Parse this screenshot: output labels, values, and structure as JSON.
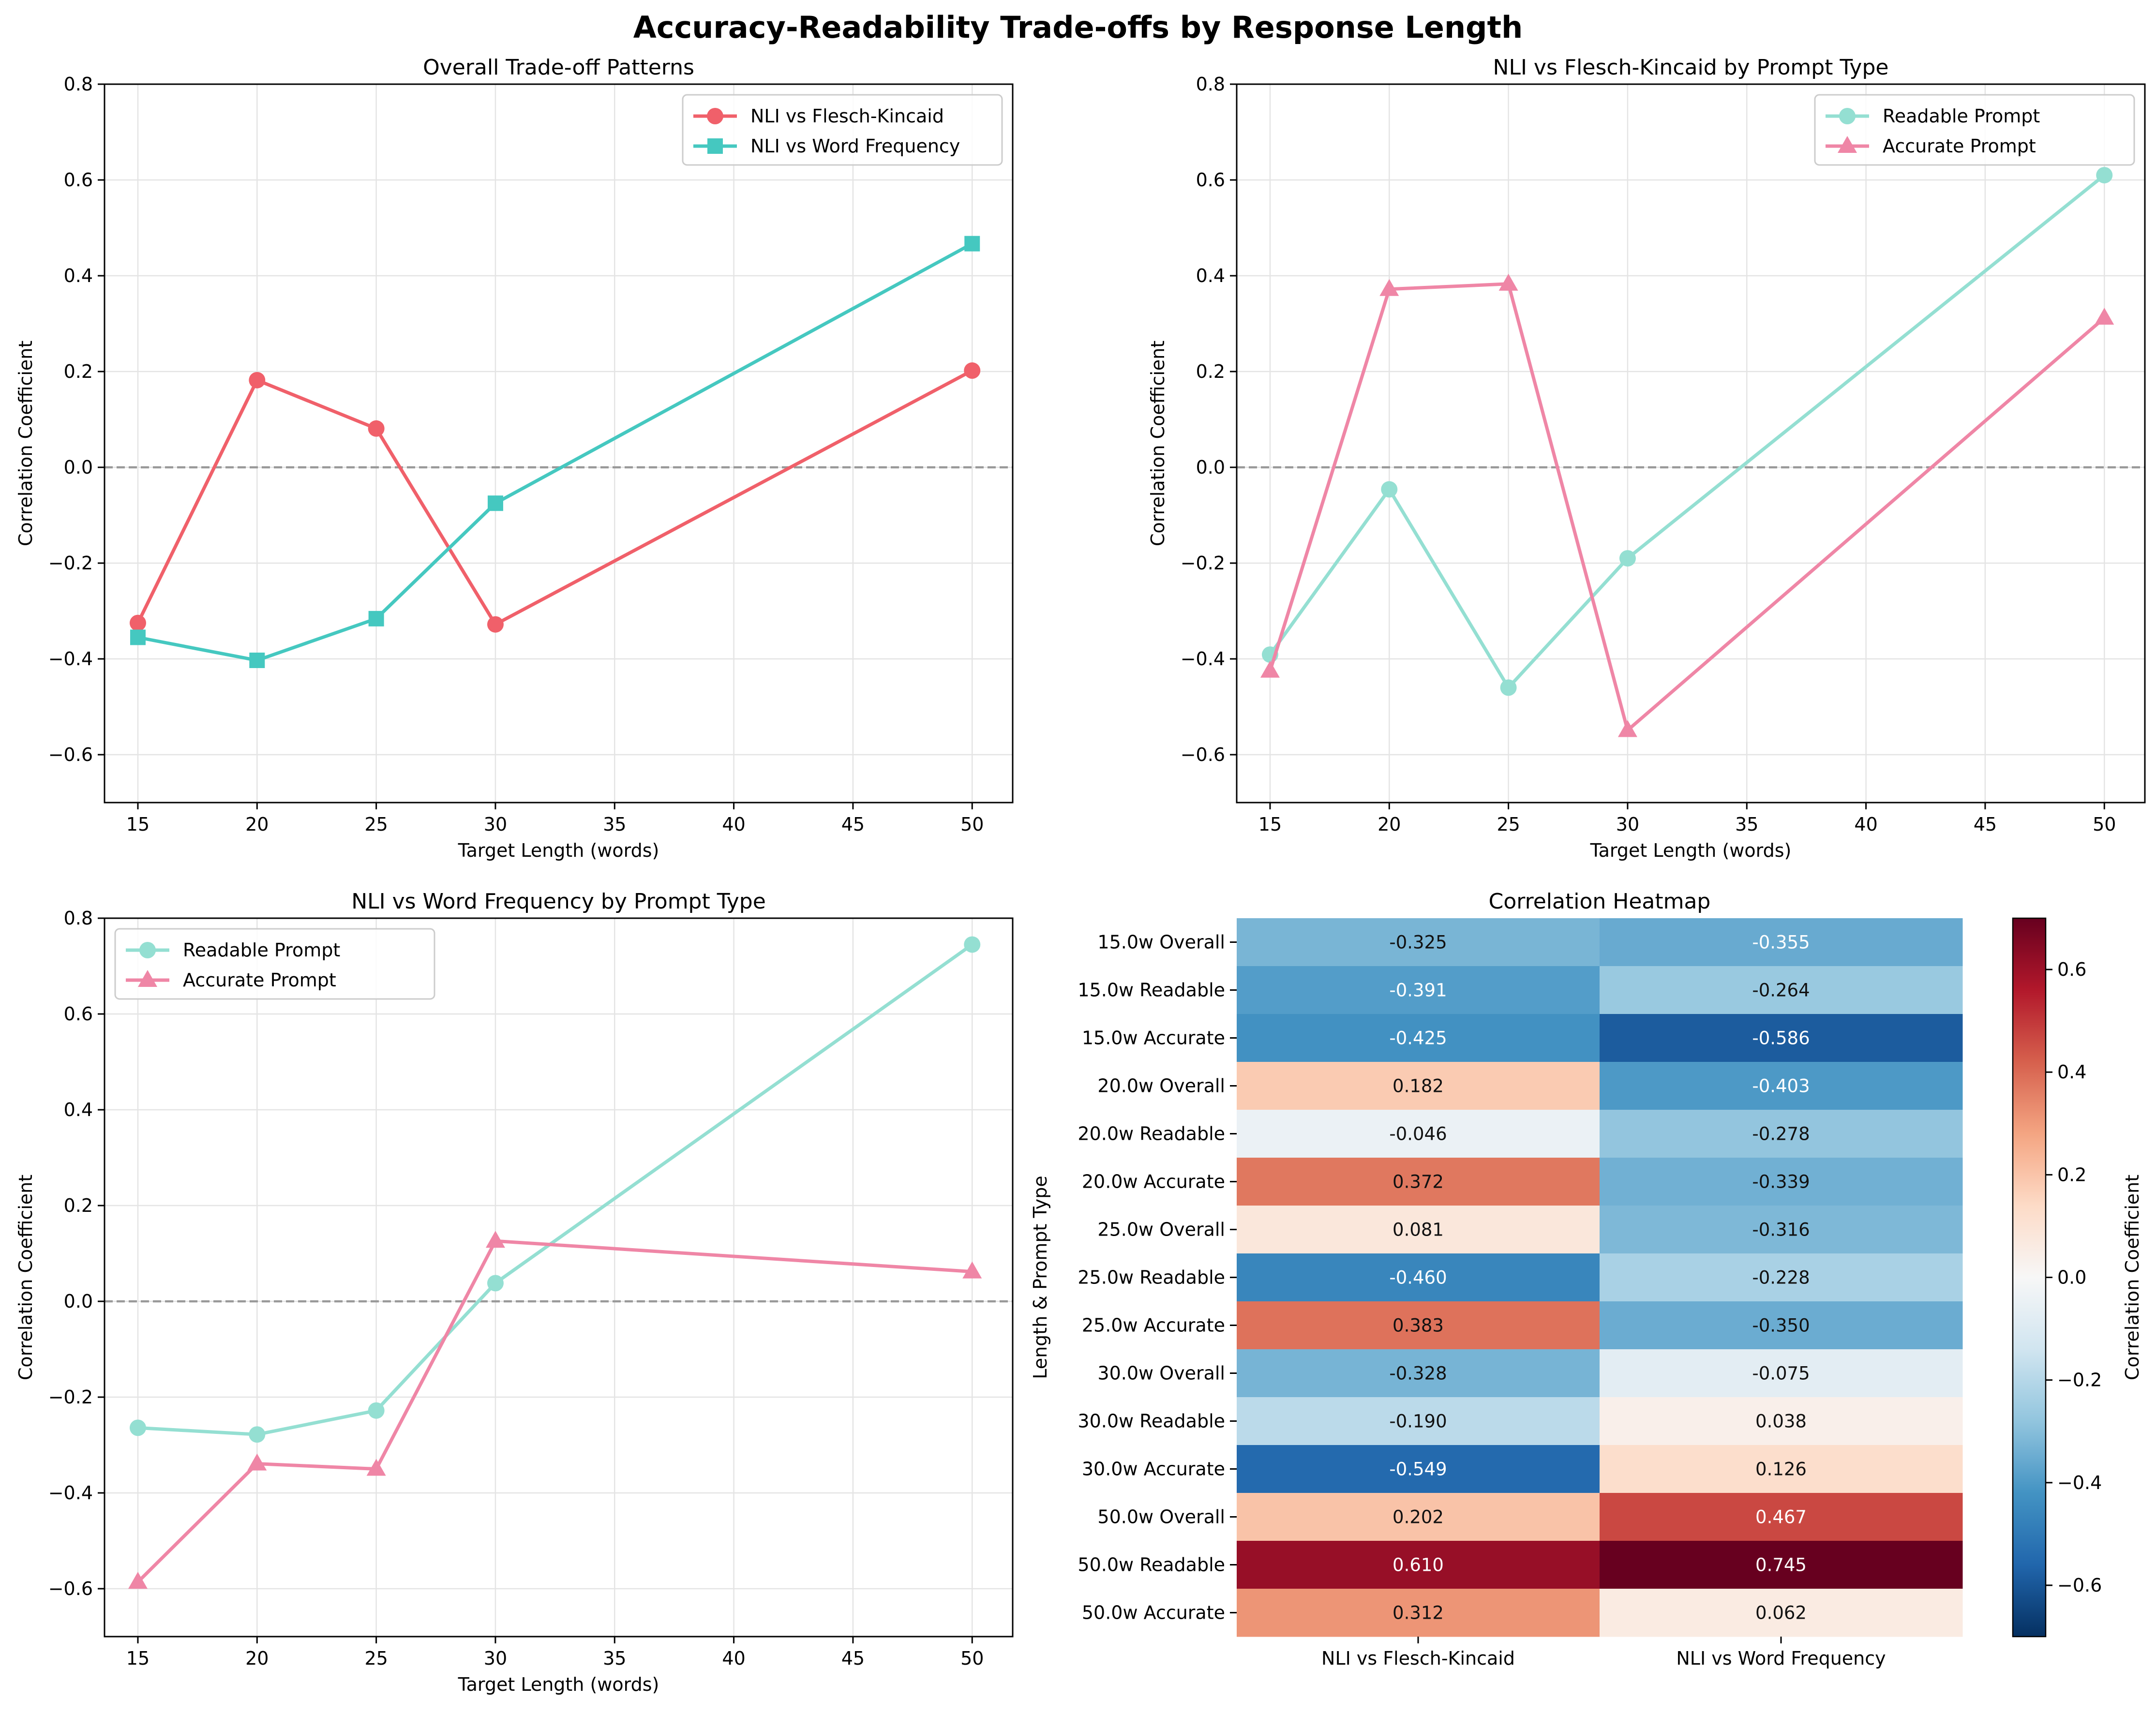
{
  "figure": {
    "title": "Accuracy-Readability Trade-offs by Response Length"
  },
  "colors": {
    "nli_fk": "#f0606a",
    "nli_wf": "#45c8c0",
    "readable": "#94dfd2",
    "accurate": "#ef86a6",
    "zero_line": "#999999",
    "grid": "#e4e4e4"
  },
  "chart_data": [
    {
      "type": "line",
      "title": "Overall Trade-off Patterns",
      "xlabel": "Target Length (words)",
      "ylabel": "Correlation Coefficient",
      "x": [
        15,
        20,
        25,
        30,
        50
      ],
      "xticks": [
        15,
        20,
        25,
        30,
        35,
        40,
        45,
        50
      ],
      "ylim": [
        -0.7,
        0.8
      ],
      "yticks": [
        -0.6,
        -0.4,
        -0.2,
        0.0,
        0.2,
        0.4,
        0.6,
        0.8
      ],
      "grid": true,
      "zero_line": true,
      "legend": "top-right",
      "series": [
        {
          "name": "NLI vs Flesch-Kincaid",
          "marker": "circle",
          "color_key": "nli_fk",
          "values": [
            -0.325,
            0.182,
            0.081,
            -0.328,
            0.202
          ]
        },
        {
          "name": "NLI vs Word Frequency",
          "marker": "square",
          "color_key": "nli_wf",
          "values": [
            -0.355,
            -0.403,
            -0.316,
            -0.075,
            0.467
          ]
        }
      ]
    },
    {
      "type": "line",
      "title": "NLI vs Flesch-Kincaid by Prompt Type",
      "xlabel": "Target Length (words)",
      "ylabel": "Correlation Coefficient",
      "x": [
        15,
        20,
        25,
        30,
        50
      ],
      "xticks": [
        15,
        20,
        25,
        30,
        35,
        40,
        45,
        50
      ],
      "ylim": [
        -0.7,
        0.8
      ],
      "yticks": [
        -0.6,
        -0.4,
        -0.2,
        0.0,
        0.2,
        0.4,
        0.6,
        0.8
      ],
      "grid": true,
      "zero_line": true,
      "legend": "top-right",
      "series": [
        {
          "name": "Readable Prompt",
          "marker": "circle",
          "color_key": "readable",
          "values": [
            -0.391,
            -0.046,
            -0.46,
            -0.19,
            0.61
          ]
        },
        {
          "name": "Accurate Prompt",
          "marker": "triangle",
          "color_key": "accurate",
          "values": [
            -0.425,
            0.372,
            0.383,
            -0.549,
            0.312
          ]
        }
      ]
    },
    {
      "type": "line",
      "title": "NLI vs Word Frequency by Prompt Type",
      "xlabel": "Target Length (words)",
      "ylabel": "Correlation Coefficient",
      "x": [
        15,
        20,
        25,
        30,
        50
      ],
      "xticks": [
        15,
        20,
        25,
        30,
        35,
        40,
        45,
        50
      ],
      "ylim": [
        -0.7,
        0.8
      ],
      "yticks": [
        -0.6,
        -0.4,
        -0.2,
        0.0,
        0.2,
        0.4,
        0.6,
        0.8
      ],
      "grid": true,
      "zero_line": true,
      "legend": "top-left",
      "series": [
        {
          "name": "Readable Prompt",
          "marker": "circle",
          "color_key": "readable",
          "values": [
            -0.264,
            -0.278,
            -0.228,
            0.038,
            0.745
          ]
        },
        {
          "name": "Accurate Prompt",
          "marker": "triangle",
          "color_key": "accurate",
          "values": [
            -0.586,
            -0.339,
            -0.35,
            0.126,
            0.062
          ]
        }
      ]
    },
    {
      "type": "heatmap",
      "title": "Correlation Heatmap",
      "ylabel": "Length & Prompt Type",
      "colorbar_label": "Correlation Coefficient",
      "colormap": "RdBu_r",
      "vmin": -0.7,
      "vmax": 0.7,
      "colorbar_ticks": [
        -0.6,
        -0.4,
        -0.2,
        0.0,
        0.2,
        0.4,
        0.6
      ],
      "columns": [
        "NLI vs Flesch-Kincaid",
        "NLI vs Word Frequency"
      ],
      "rows": [
        "15.0w Overall",
        "15.0w Readable",
        "15.0w Accurate",
        "20.0w Overall",
        "20.0w Readable",
        "20.0w Accurate",
        "25.0w Overall",
        "25.0w Readable",
        "25.0w Accurate",
        "30.0w Overall",
        "30.0w Readable",
        "30.0w Accurate",
        "50.0w Overall",
        "50.0w Readable",
        "50.0w Accurate"
      ],
      "values": [
        [
          -0.325,
          -0.355
        ],
        [
          -0.391,
          -0.264
        ],
        [
          -0.425,
          -0.586
        ],
        [
          0.182,
          -0.403
        ],
        [
          -0.046,
          -0.278
        ],
        [
          0.372,
          -0.339
        ],
        [
          0.081,
          -0.316
        ],
        [
          -0.46,
          -0.228
        ],
        [
          0.383,
          -0.35
        ],
        [
          -0.328,
          -0.075
        ],
        [
          -0.19,
          0.038
        ],
        [
          -0.549,
          0.126
        ],
        [
          0.202,
          0.467
        ],
        [
          0.61,
          0.745
        ],
        [
          0.312,
          0.062
        ]
      ]
    }
  ]
}
